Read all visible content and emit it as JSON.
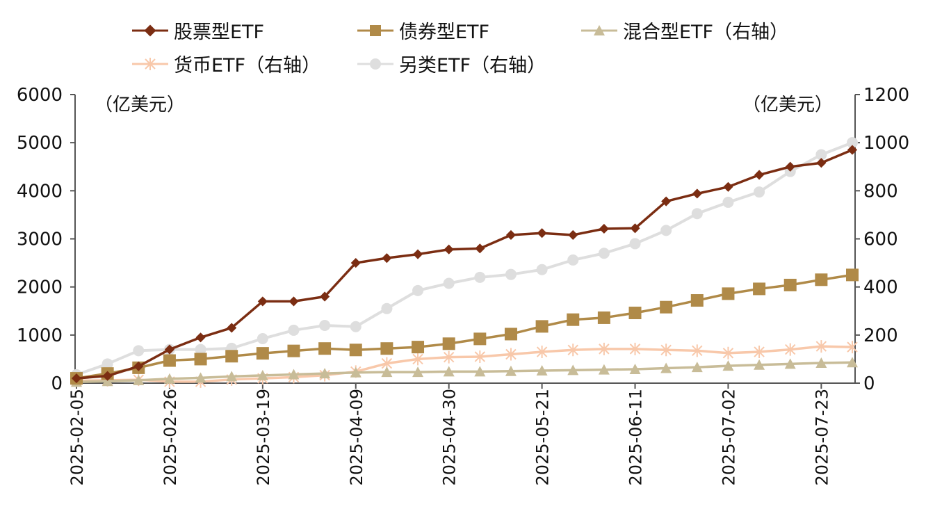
{
  "chart_data": {
    "type": "line",
    "title": "",
    "left_axis": {
      "unit_label": "（亿美元）",
      "range": [
        0,
        6000
      ],
      "ticks": [
        "0",
        "1000",
        "2000",
        "3000",
        "4000",
        "5000",
        "6000"
      ]
    },
    "right_axis": {
      "unit_label": "（亿美元）",
      "range": [
        0,
        1200
      ],
      "ticks": [
        "0",
        "200",
        "400",
        "600",
        "800",
        "1000",
        "1200"
      ]
    },
    "x": [
      "2025-02-05",
      "2025-02-12",
      "2025-02-19",
      "2025-02-26",
      "2025-03-05",
      "2025-03-12",
      "2025-03-19",
      "2025-03-26",
      "2025-04-02",
      "2025-04-09",
      "2025-04-16",
      "2025-04-23",
      "2025-04-30",
      "2025-05-07",
      "2025-05-14",
      "2025-05-21",
      "2025-05-28",
      "2025-06-04",
      "2025-06-11",
      "2025-06-18",
      "2025-06-25",
      "2025-07-02",
      "2025-07-09",
      "2025-07-16",
      "2025-07-23",
      "2025-07-30"
    ],
    "x_tick_labels": [
      "2025-02-05",
      "2025-02-26",
      "2025-03-19",
      "2025-04-09",
      "2025-04-30",
      "2025-05-21",
      "2025-06-11",
      "2025-07-02",
      "2025-07-23"
    ],
    "series": [
      {
        "name": "股票型ETF",
        "axis": "left",
        "color": "#7b2d12",
        "marker": "diamond",
        "values": [
          100,
          150,
          350,
          700,
          950,
          1150,
          1700,
          1700,
          1800,
          2500,
          2600,
          2680,
          2780,
          2800,
          3080,
          3120,
          3080,
          3210,
          3220,
          3780,
          3940,
          4080,
          4330,
          4500,
          4580,
          4850
        ]
      },
      {
        "name": "债券型ETF",
        "axis": "left",
        "color": "#b08a48",
        "marker": "square",
        "values": [
          100,
          200,
          320,
          470,
          500,
          560,
          620,
          670,
          720,
          690,
          720,
          750,
          820,
          920,
          1020,
          1180,
          1320,
          1360,
          1460,
          1580,
          1720,
          1860,
          1960,
          2040,
          2150,
          2250
        ]
      },
      {
        "name": "混合型ETF（右轴）",
        "axis": "right",
        "color": "#c8bc98",
        "marker": "triangle",
        "values": [
          5,
          8,
          12,
          18,
          22,
          28,
          32,
          36,
          40,
          44,
          46,
          46,
          48,
          48,
          50,
          52,
          54,
          56,
          58,
          62,
          66,
          72,
          76,
          80,
          84,
          86
        ]
      },
      {
        "name": "货币ETF（右轴）",
        "axis": "right",
        "color": "#f8c8aa",
        "marker": "star",
        "values": [
          10,
          12,
          14,
          6,
          6,
          15,
          20,
          25,
          33,
          48,
          82,
          100,
          108,
          110,
          120,
          130,
          138,
          142,
          142,
          138,
          135,
          125,
          130,
          140,
          153,
          150
        ]
      },
      {
        "name": "另类ETF（右轴）",
        "axis": "right",
        "color": "#dedede",
        "marker": "circle",
        "values": [
          35,
          80,
          135,
          140,
          140,
          145,
          185,
          220,
          240,
          235,
          310,
          385,
          415,
          440,
          452,
          472,
          512,
          540,
          580,
          635,
          705,
          752,
          795,
          880,
          950,
          1000
        ]
      }
    ],
    "legend_position": "top",
    "grid": false
  }
}
